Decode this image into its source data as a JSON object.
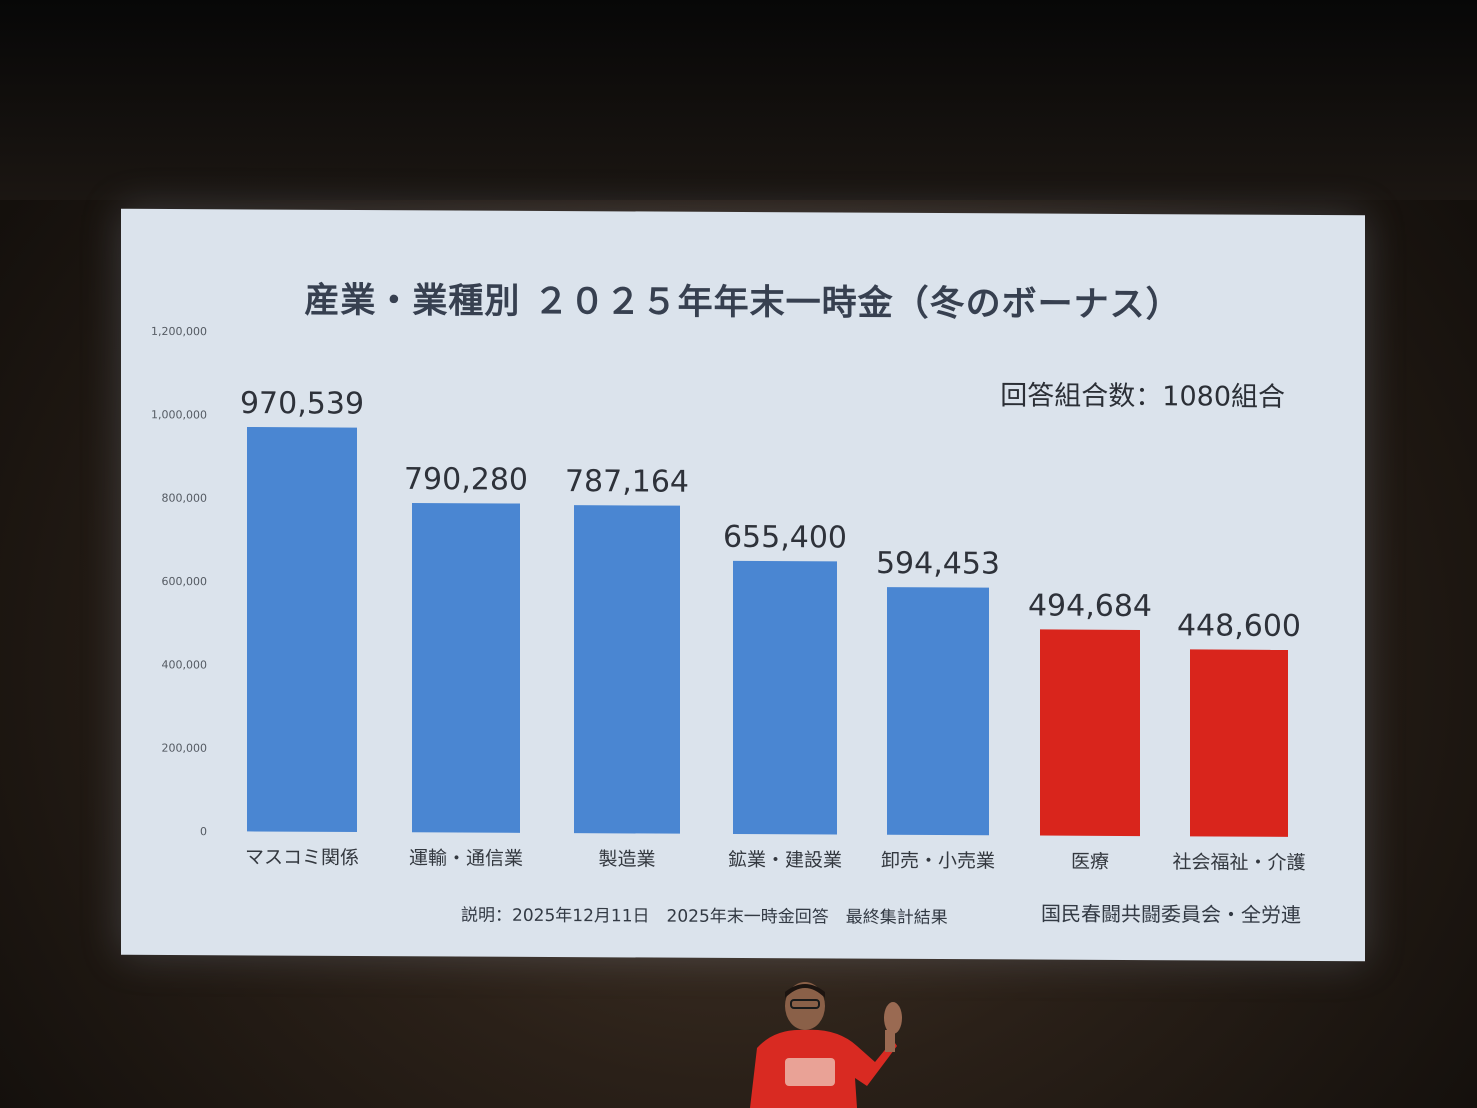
{
  "chart_data": {
    "type": "bar",
    "title": "産業・業種別 ２０２５年年末一時金（冬のボーナス）",
    "categories": [
      "マスコミ関係",
      "運輸・通信業",
      "製造業",
      "鉱業・建設業",
      "卸売・小売業",
      "医療",
      "社会福祉・介護"
    ],
    "values": [
      970539,
      790280,
      787164,
      655400,
      594453,
      494684,
      448600
    ],
    "value_labels": [
      "970,539",
      "790,280",
      "787,164",
      "655,400",
      "594,453",
      "494,684",
      "448,600"
    ],
    "bar_colors": [
      "#4a86d2",
      "#4a86d2",
      "#4a86d2",
      "#4a86d2",
      "#4a86d2",
      "#d9251c",
      "#d9251c"
    ],
    "ylim": [
      0,
      1200000
    ],
    "yticks": [
      "0",
      "200,000",
      "400,000",
      "600,000",
      "800,000",
      "1,000,000",
      "1,200,000"
    ],
    "grid": false,
    "legend": "none"
  },
  "annotation": {
    "responses": "回答組合数：1080組合"
  },
  "footer": {
    "note": "説明：2025年12月11日　2025年末一時金回答　最終集計結果",
    "source": "国民春闘共闘委員会・全労連"
  },
  "colors": {
    "screen_bg": "#dbe3ec",
    "blue_bar": "#4a86d2",
    "red_bar": "#d9251c"
  }
}
